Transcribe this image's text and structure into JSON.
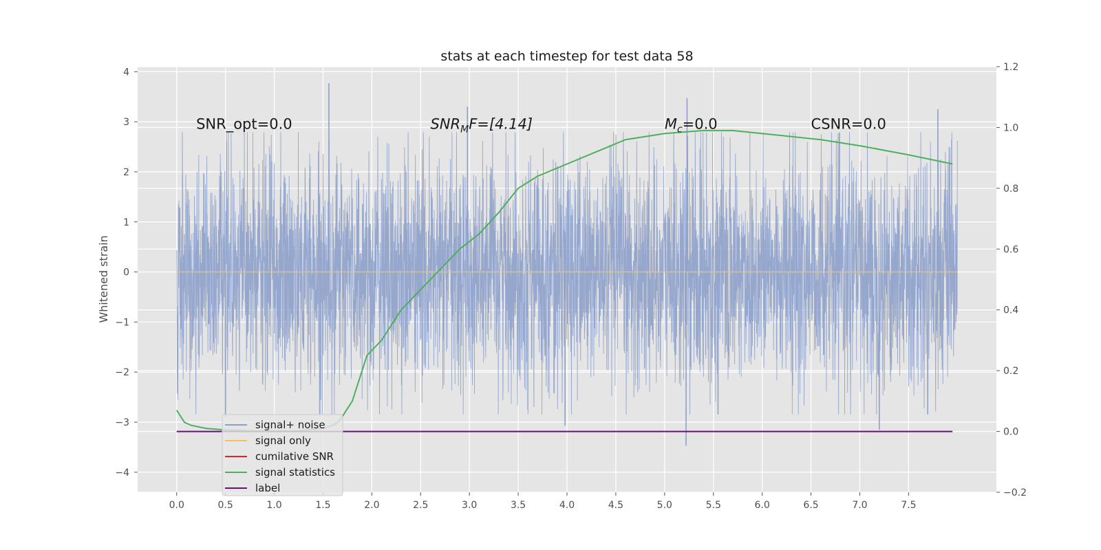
{
  "chart_data": {
    "type": "line",
    "title": "stats at each timestep for test data 58",
    "ylabel": "Whitened strain",
    "xlabel": "",
    "xlim": [
      -0.4,
      8.4
    ],
    "ylim": [
      -4.4,
      4.1
    ],
    "y2lim": [
      -0.2,
      1.2
    ],
    "x_ticks": [
      "0.0",
      "0.5",
      "1.0",
      "1.5",
      "2.0",
      "2.5",
      "3.0",
      "3.5",
      "4.0",
      "4.5",
      "5.0",
      "5.5",
      "6.0",
      "6.5",
      "7.0",
      "7.5"
    ],
    "y_ticks": [
      "−4",
      "−3",
      "−2",
      "−1",
      "0",
      "1",
      "2",
      "3",
      "4"
    ],
    "y2_ticks": [
      "−0.2",
      "0.0",
      "0.2",
      "0.4",
      "0.6",
      "0.8",
      "1.0",
      "1.2"
    ],
    "grid": true,
    "legend_position": "lower-left",
    "annotations": [
      {
        "text": "SNR_opt=0.0",
        "x": 0.2,
        "y": 2.95
      },
      {
        "base": "SNR",
        "sub": "M",
        "rest": "F=[4.14]",
        "x": 2.6,
        "y": 2.95
      },
      {
        "base": "M",
        "sub": "c",
        "rest": "=0.0",
        "x": 5.0,
        "y": 2.95
      },
      {
        "text": "CSNR=0.0",
        "x": 6.5,
        "y": 2.95
      }
    ],
    "series": [
      {
        "name": "signal+ noise",
        "axis": "left",
        "color": "#8da0cb",
        "kind": "noise",
        "x_range": [
          0.0,
          8.0
        ],
        "y_range": [
          -3.47,
          3.77
        ],
        "typical_amplitude": 1.45,
        "noted_peaks": [
          {
            "x": 1.56,
            "y": 3.77
          },
          {
            "x": 2.98,
            "y": 3.3
          },
          {
            "x": 5.23,
            "y": 3.47
          },
          {
            "x": 7.8,
            "y": 3.25
          },
          {
            "x": 5.22,
            "y": -3.47
          },
          {
            "x": 3.98,
            "y": -3.07
          },
          {
            "x": 7.2,
            "y": -3.15
          },
          {
            "x": 0.5,
            "y": -2.9
          }
        ]
      },
      {
        "name": "signal only",
        "axis": "left",
        "color": "#f4c24d",
        "x": [
          0.0,
          8.0
        ],
        "y": [
          0.0,
          0.0
        ]
      },
      {
        "name": "cumilative SNR",
        "axis": "right",
        "color": "#d62728",
        "x": [],
        "y": []
      },
      {
        "name": "signal statistics",
        "axis": "right",
        "color": "#4daf5e",
        "x": [
          0.0,
          0.08,
          0.15,
          0.3,
          0.5,
          0.8,
          1.2,
          1.5,
          1.6,
          1.65,
          1.7,
          1.8,
          1.9,
          1.95,
          2.1,
          2.3,
          2.6,
          2.9,
          3.1,
          3.3,
          3.5,
          3.7,
          4.0,
          4.3,
          4.6,
          5.0,
          5.4,
          5.7,
          6.0,
          6.3,
          6.6,
          7.0,
          7.5,
          7.95
        ],
        "y": [
          0.07,
          0.03,
          0.02,
          0.01,
          0.005,
          0.002,
          0.001,
          0.01,
          0.02,
          0.03,
          0.05,
          0.1,
          0.2,
          0.25,
          0.3,
          0.4,
          0.5,
          0.6,
          0.65,
          0.72,
          0.8,
          0.84,
          0.88,
          0.92,
          0.96,
          0.98,
          0.99,
          0.99,
          0.98,
          0.97,
          0.96,
          0.94,
          0.91,
          0.88
        ]
      },
      {
        "name": "label",
        "axis": "right",
        "color": "#6a0f7a",
        "x": [
          0.0,
          7.95
        ],
        "y": [
          0.0,
          0.0
        ]
      }
    ]
  }
}
